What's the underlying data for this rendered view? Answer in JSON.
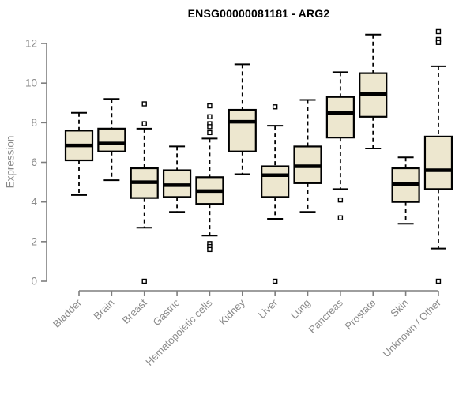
{
  "colors": {
    "box_fill": "#EDE7CF",
    "box_stroke": "#000000",
    "median": "#000000",
    "axis": "#7E7E7E",
    "tick_label": "#8A8A8A",
    "title_color": "#000000",
    "background": "#FFFFFF"
  },
  "chart_data": {
    "type": "boxplot",
    "title": "ENSG00000081181 - ARG2",
    "ylabel": "Expression",
    "xlabel": "",
    "ylim": [
      0,
      12.6
    ],
    "yticks": [
      0,
      2,
      4,
      6,
      8,
      10,
      12
    ],
    "grid": false,
    "legend_position": null,
    "x_label_rotation_deg": 45,
    "categories": [
      "Bladder",
      "Brain",
      "Breast",
      "Gastric",
      "Hematopoietic cells",
      "Kidney",
      "Liver",
      "Lung",
      "Pancreas",
      "Prostate",
      "Skin",
      "Unknown / Other"
    ],
    "series": [
      {
        "name": "Bladder",
        "low": 4.35,
        "q1": 6.1,
        "median": 6.85,
        "q3": 7.6,
        "high": 8.5,
        "outliers": []
      },
      {
        "name": "Brain",
        "low": 5.1,
        "q1": 6.55,
        "median": 6.95,
        "q3": 7.7,
        "high": 9.2,
        "outliers": []
      },
      {
        "name": "Breast",
        "low": 2.7,
        "q1": 4.2,
        "median": 5.0,
        "q3": 5.7,
        "high": 7.7,
        "outliers": [
          8.95,
          7.95,
          0
        ]
      },
      {
        "name": "Gastric",
        "low": 3.5,
        "q1": 4.25,
        "median": 4.85,
        "q3": 5.6,
        "high": 6.8,
        "outliers": []
      },
      {
        "name": "Hematopoietic cells",
        "low": 2.3,
        "q1": 3.9,
        "median": 4.55,
        "q3": 5.25,
        "high": 7.2,
        "outliers": [
          8.85,
          8.3,
          7.95,
          7.8,
          7.5,
          1.9,
          1.75,
          1.6
        ]
      },
      {
        "name": "Kidney",
        "low": 5.4,
        "q1": 6.55,
        "median": 8.05,
        "q3": 8.65,
        "high": 10.95,
        "outliers": []
      },
      {
        "name": "Liver",
        "low": 3.15,
        "q1": 4.25,
        "median": 5.35,
        "q3": 5.8,
        "high": 7.85,
        "outliers": [
          8.8,
          0
        ]
      },
      {
        "name": "Lung",
        "low": 3.5,
        "q1": 4.95,
        "median": 5.8,
        "q3": 6.8,
        "high": 9.15,
        "outliers": []
      },
      {
        "name": "Pancreas",
        "low": 4.65,
        "q1": 7.25,
        "median": 8.5,
        "q3": 9.3,
        "high": 10.55,
        "outliers": [
          4.1,
          3.2
        ]
      },
      {
        "name": "Prostate",
        "low": 6.7,
        "q1": 8.3,
        "median": 9.45,
        "q3": 10.5,
        "high": 12.45,
        "outliers": []
      },
      {
        "name": "Skin",
        "low": 2.9,
        "q1": 4.0,
        "median": 4.9,
        "q3": 5.7,
        "high": 6.25,
        "outliers": []
      },
      {
        "name": "Unknown / Other",
        "low": 1.65,
        "q1": 4.65,
        "median": 5.6,
        "q3": 7.3,
        "high": 10.85,
        "outliers": [
          12.6,
          12.2,
          12.05,
          0
        ]
      }
    ]
  }
}
